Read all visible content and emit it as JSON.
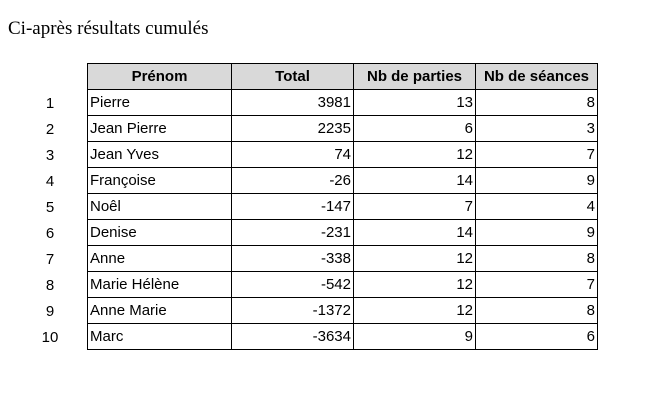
{
  "title": "Ci-après résultats cumulés",
  "table": {
    "headers": [
      "Prénom",
      "Total",
      "Nb de parties",
      "Nb de séances"
    ],
    "rows": [
      {
        "rank": "1",
        "name": "Pierre",
        "total": "3981",
        "parties": "13",
        "seances": "8"
      },
      {
        "rank": "2",
        "name": "Jean Pierre",
        "total": "2235",
        "parties": "6",
        "seances": "3"
      },
      {
        "rank": "3",
        "name": "Jean Yves",
        "total": "74",
        "parties": "12",
        "seances": "7"
      },
      {
        "rank": "4",
        "name": "Françoise",
        "total": "-26",
        "parties": "14",
        "seances": "9"
      },
      {
        "rank": "5",
        "name": "Noêl",
        "total": "-147",
        "parties": "7",
        "seances": "4"
      },
      {
        "rank": "6",
        "name": "Denise",
        "total": "-231",
        "parties": "14",
        "seances": "9"
      },
      {
        "rank": "7",
        "name": "Anne",
        "total": "-338",
        "parties": "12",
        "seances": "8"
      },
      {
        "rank": "8",
        "name": "Marie Hélène",
        "total": "-542",
        "parties": "12",
        "seances": "7"
      },
      {
        "rank": "9",
        "name": "Anne Marie",
        "total": "-1372",
        "parties": "12",
        "seances": "8"
      },
      {
        "rank": "10",
        "name": "Marc",
        "total": "-3634",
        "parties": "9",
        "seances": "6"
      }
    ]
  }
}
